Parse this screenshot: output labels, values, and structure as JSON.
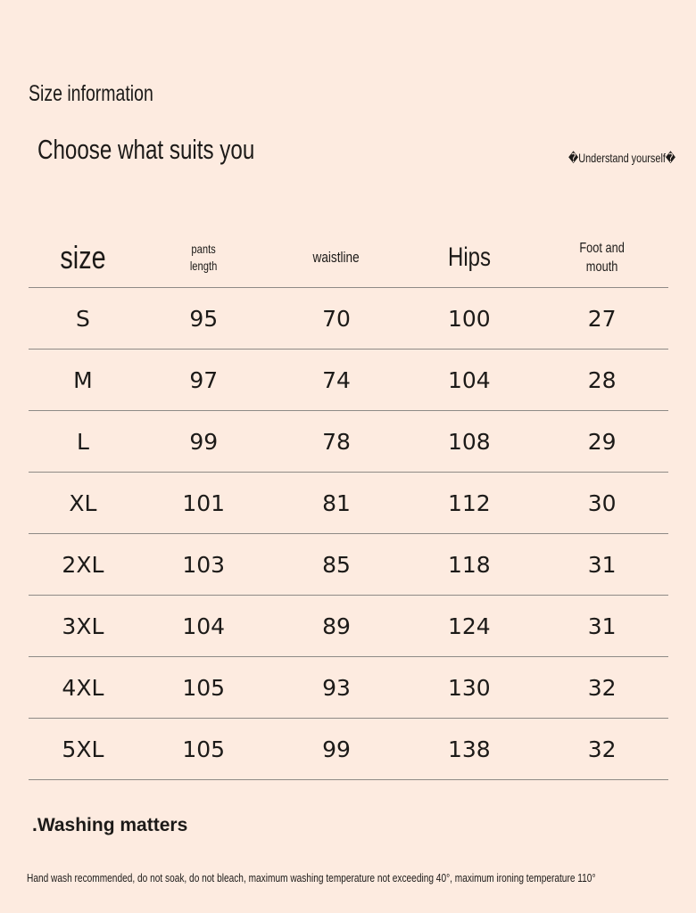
{
  "header": {
    "title": "Size information",
    "subtitle": "Choose what suits you",
    "note": "�Understand yourself�"
  },
  "table": {
    "columns": [
      "size",
      "pants\nlength",
      "waistline",
      "Hips",
      "Foot and\nmouth"
    ],
    "rows": [
      [
        "S",
        "95",
        "70",
        "100",
        "27"
      ],
      [
        "M",
        "97",
        "74",
        "104",
        "28"
      ],
      [
        "L",
        "99",
        "78",
        "108",
        "29"
      ],
      [
        "XL",
        "101",
        "81",
        "112",
        "30"
      ],
      [
        "2XL",
        "103",
        "85",
        "118",
        "31"
      ],
      [
        "3XL",
        "104",
        "89",
        "124",
        "31"
      ],
      [
        "4XL",
        "105",
        "93",
        "130",
        "32"
      ],
      [
        "5XL",
        "105",
        "99",
        "138",
        "32"
      ]
    ]
  },
  "washing": {
    "title": ".Washing matters",
    "text": "Hand wash recommended, do not soak, do not bleach, maximum washing temperature not exceeding 40°, maximum ironing temperature 110°"
  },
  "colors": {
    "background": "#fdebe0",
    "text": "#1c1a18",
    "divider": "#8e8a86"
  }
}
